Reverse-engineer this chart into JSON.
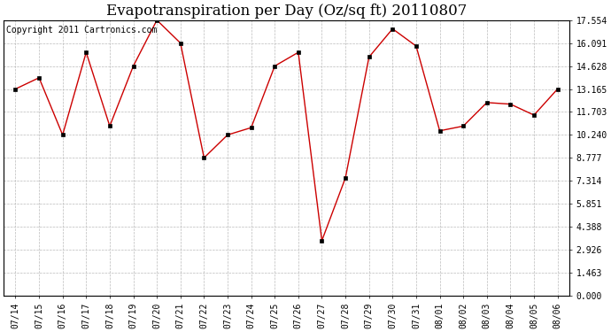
{
  "title": "Evapotranspiration per Day (Oz/sq ft) 20110807",
  "copyright_text": "Copyright 2011 Cartronics.com",
  "x_labels": [
    "07/14",
    "07/15",
    "07/16",
    "07/17",
    "07/18",
    "07/19",
    "07/20",
    "07/21",
    "07/22",
    "07/23",
    "07/24",
    "07/25",
    "07/26",
    "07/27",
    "07/28",
    "07/29",
    "07/30",
    "07/31",
    "08/01",
    "08/02",
    "08/03",
    "08/04",
    "08/05",
    "08/06"
  ],
  "y_values": [
    13.165,
    13.88,
    10.24,
    15.5,
    10.8,
    14.628,
    17.554,
    16.091,
    8.777,
    10.24,
    10.7,
    14.628,
    15.5,
    3.5,
    7.5,
    15.2,
    17.0,
    15.9,
    10.5,
    10.8,
    12.3,
    12.2,
    11.5,
    13.165
  ],
  "line_color": "#cc0000",
  "marker_color": "#000000",
  "background_color": "#ffffff",
  "grid_color": "#aaaaaa",
  "y_ticks": [
    0.0,
    1.463,
    2.926,
    4.388,
    5.851,
    7.314,
    8.777,
    10.24,
    11.703,
    13.165,
    14.628,
    16.091,
    17.554
  ],
  "ylim": [
    0.0,
    17.554
  ],
  "title_fontsize": 12,
  "copyright_fontsize": 7
}
